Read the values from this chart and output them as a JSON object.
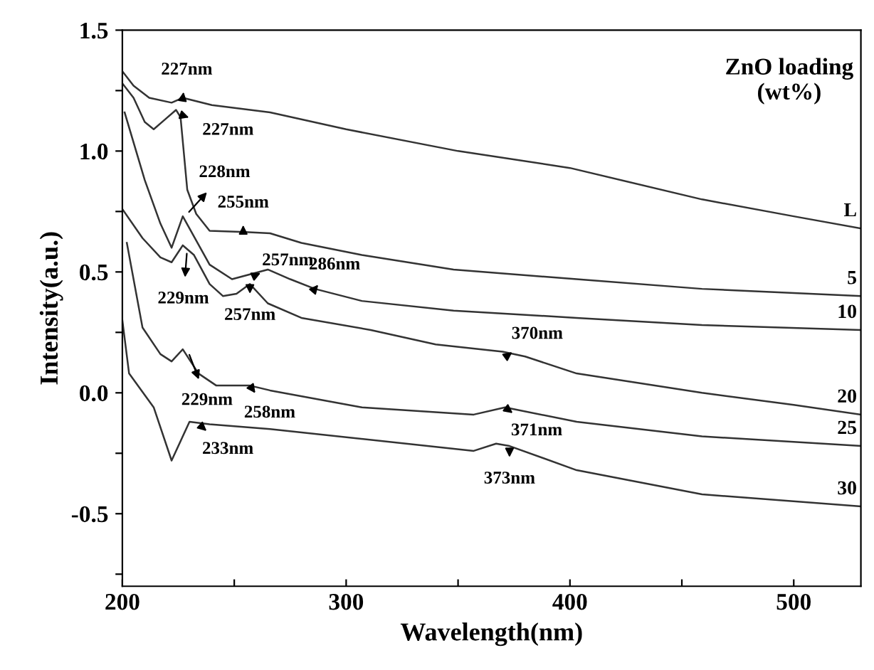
{
  "chart_data": {
    "type": "line",
    "xlabel": "Wavelength(nm)",
    "ylabel": "Intensity(a.u.)",
    "legend_title": "ZnO loading\n(wt%)",
    "xlim": [
      200,
      530
    ],
    "ylim": [
      -0.8,
      1.5
    ],
    "xticks": [
      200,
      {
        "value": 250,
        "label": null
      },
      300,
      {
        "value": 350,
        "label": null
      },
      400,
      {
        "value": 450,
        "label": null
      },
      500
    ],
    "yticks": [
      {
        "value": -0.75,
        "label": null
      },
      {
        "value": -0.5,
        "label": "-0.5"
      },
      {
        "value": -0.25,
        "label": null
      },
      {
        "value": 0,
        "label": "0.0"
      },
      {
        "value": 0.25,
        "label": null
      },
      {
        "value": 0.5,
        "label": "0.5"
      },
      {
        "value": 0.75,
        "label": null
      },
      {
        "value": 1,
        "label": "1.0"
      },
      {
        "value": 1.25,
        "label": null
      },
      {
        "value": 1.5,
        "label": "1.5"
      }
    ],
    "grid": false,
    "marker": "none",
    "line_style": "solid",
    "series": [
      {
        "name": "L",
        "color": "#333333",
        "x": [
          200,
          205,
          212,
          222,
          227,
          240,
          266,
          300,
          350,
          400,
          459,
          500,
          530
        ],
        "values": [
          1.33,
          1.27,
          1.22,
          1.2,
          1.22,
          1.19,
          1.16,
          1.09,
          1.0,
          0.93,
          0.8,
          0.73,
          0.68
        ]
      },
      {
        "name": "5",
        "color": "#333333",
        "x": [
          200,
          205,
          210,
          214,
          219,
          224,
          226,
          229,
          233,
          239,
          255,
          266,
          280,
          307,
          348,
          403,
          459,
          530
        ],
        "values": [
          1.28,
          1.22,
          1.12,
          1.09,
          1.13,
          1.17,
          1.14,
          0.84,
          0.74,
          0.67,
          0.665,
          0.66,
          0.62,
          0.57,
          0.51,
          0.47,
          0.43,
          0.4
        ]
      },
      {
        "name": "10",
        "color": "#333333",
        "x": [
          201,
          210,
          217,
          222,
          227,
          233,
          239,
          249,
          257,
          265,
          275,
          286,
          307,
          348,
          403,
          459,
          530
        ],
        "values": [
          1.16,
          0.88,
          0.7,
          0.6,
          0.73,
          0.63,
          0.53,
          0.47,
          0.49,
          0.51,
          0.47,
          0.43,
          0.38,
          0.34,
          0.31,
          0.28,
          0.26
        ]
      },
      {
        "name": "20",
        "color": "#333333",
        "x": [
          200,
          209,
          217,
          222,
          227,
          232,
          239,
          245,
          251,
          257,
          265,
          280,
          311,
          340,
          370,
          380,
          403,
          459,
          500,
          530
        ],
        "values": [
          0.76,
          0.64,
          0.56,
          0.54,
          0.61,
          0.57,
          0.45,
          0.4,
          0.41,
          0.45,
          0.37,
          0.31,
          0.26,
          0.2,
          0.17,
          0.15,
          0.08,
          0.0,
          -0.05,
          -0.09
        ]
      },
      {
        "name": "25",
        "color": "#333333",
        "x": [
          202,
          209,
          217,
          222,
          227,
          234,
          242,
          257,
          266,
          307,
          357,
          371,
          403,
          459,
          530
        ],
        "values": [
          0.62,
          0.27,
          0.16,
          0.13,
          0.18,
          0.08,
          0.03,
          0.03,
          0.01,
          -0.06,
          -0.09,
          -0.06,
          -0.12,
          -0.18,
          -0.22
        ]
      },
      {
        "name": "30",
        "color": "#333333",
        "x": [
          200,
          203,
          214,
          222,
          230,
          239,
          266,
          357,
          367,
          373,
          403,
          459,
          530
        ],
        "values": [
          0.3,
          0.08,
          -0.06,
          -0.28,
          -0.12,
          -0.13,
          -0.15,
          -0.24,
          -0.21,
          -0.22,
          -0.32,
          -0.42,
          -0.47
        ]
      }
    ],
    "annotations": [
      {
        "text": "227nm",
        "x": 227,
        "y": 1.22
      },
      {
        "text": "227nm",
        "x": 226,
        "y": 1.15
      },
      {
        "text": "228nm",
        "x": 228,
        "y": 0.73
      },
      {
        "text": "255nm",
        "x": 254,
        "y": 0.67
      },
      {
        "text": "257nm",
        "x": 258,
        "y": 0.48
      },
      {
        "text": "286nm",
        "x": 286,
        "y": 0.43
      },
      {
        "text": "229nm",
        "x": 229,
        "y": 0.6
      },
      {
        "text": "257nm",
        "x": 257,
        "y": 0.45
      },
      {
        "text": "370nm",
        "x": 373,
        "y": 0.16
      },
      {
        "text": "229nm",
        "x": 229,
        "y": 0.18
      },
      {
        "text": "258nm",
        "x": 257,
        "y": 0.03
      },
      {
        "text": "371nm",
        "x": 371,
        "y": -0.06
      },
      {
        "text": "233nm",
        "x": 233,
        "y": -0.12
      },
      {
        "text": "373nm",
        "x": 373,
        "y": -0.21
      }
    ]
  }
}
